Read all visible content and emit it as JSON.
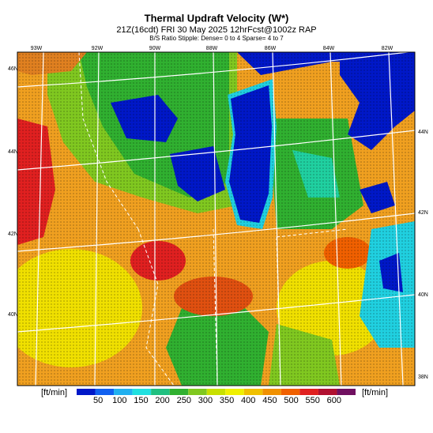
{
  "header": {
    "title": "Thermal Updraft Velocity (W*)",
    "subtitle": "21Z(16cdt) FRI 30 May 2025 12hrFcst@1002z RAP",
    "note": "B/S Ratio Stipple: Dense= 0 to 4 Sparse= 4 to 7"
  },
  "map": {
    "lon_labels": [
      "93W",
      "92W",
      "90W",
      "88W",
      "86W",
      "84W",
      "82W"
    ],
    "lat_labels_left": [
      "46N",
      "44N",
      "42N",
      "40N"
    ],
    "lat_labels_right": [
      "44N",
      "42N",
      "40N",
      "38N"
    ]
  },
  "colorbar": {
    "unit_left": "[ft/min]",
    "unit_right": "[ft/min]",
    "ticks": [
      50,
      100,
      150,
      200,
      250,
      300,
      350,
      400,
      450,
      500,
      550,
      600
    ],
    "colors": [
      "#0018c8",
      "#1060f0",
      "#20b0f0",
      "#20e0e0",
      "#20c080",
      "#30b030",
      "#80c820",
      "#c8e000",
      "#f0f000",
      "#f0c000",
      "#f09000",
      "#f06000",
      "#e02020",
      "#b01030",
      "#701060"
    ]
  }
}
